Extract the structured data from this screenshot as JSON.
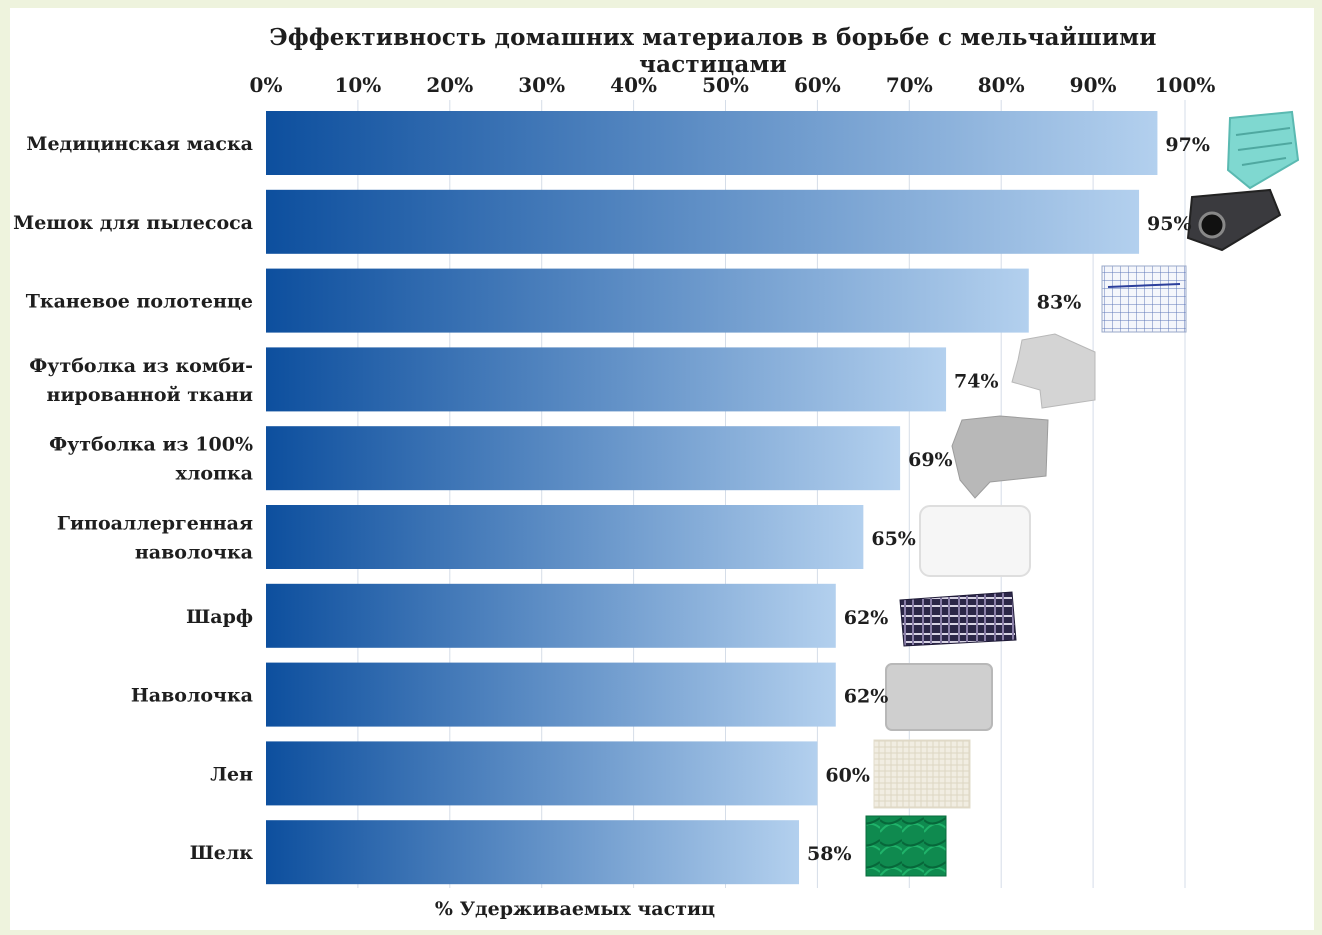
{
  "chart_data": {
    "type": "bar",
    "orientation": "horizontal",
    "title": "Эффективность домашних материалов в борьбе с мельчайшими частицами",
    "xlabel": "% Удерживаемых частиц",
    "ylabel": "",
    "xlim": [
      0,
      100
    ],
    "ticks": [
      "0%",
      "10%",
      "20%",
      "30%",
      "40%",
      "50%",
      "60%",
      "70%",
      "80%",
      "90%",
      "100%"
    ],
    "tick_position": "top",
    "grid": true,
    "categories": [
      [
        "Медицинская маска"
      ],
      [
        "Мешок для пылесоса"
      ],
      [
        "Тканевое полотенце"
      ],
      [
        "Футболка из комби-",
        "нированной ткани"
      ],
      [
        "Футболка из 100%",
        "хлопка"
      ],
      [
        "Гипоаллергенная",
        "наволочка"
      ],
      [
        "Шарф"
      ],
      [
        "Наволочка"
      ],
      [
        "Лен"
      ],
      [
        "Шелк"
      ]
    ],
    "values": [
      97,
      95,
      83,
      74,
      69,
      65,
      62,
      62,
      60,
      58
    ],
    "value_labels": [
      "97%",
      "95%",
      "83%",
      "74%",
      "69%",
      "65%",
      "62%",
      "62%",
      "60%",
      "58%"
    ],
    "images": [
      "mask-icon",
      "vacuum-bag-icon",
      "towel-icon",
      "tshirt-blend-icon",
      "tshirt-cotton-icon",
      "pillow-white-icon",
      "scarf-icon",
      "pillowcase-icon",
      "linen-icon",
      "silk-icon"
    ],
    "colors": {
      "bar_start": "#0d4f9e",
      "bar_end": "#b3d0ee",
      "grid": "#d5dde8"
    }
  }
}
